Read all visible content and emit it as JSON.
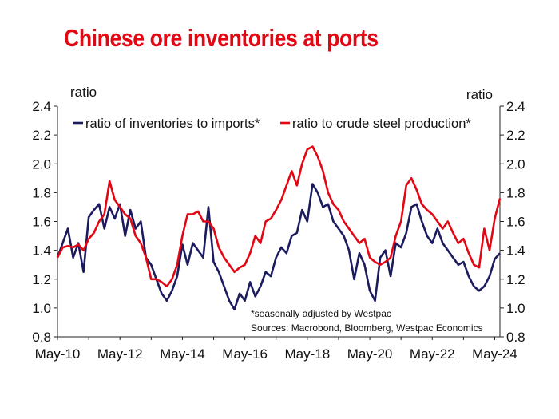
{
  "title": "Chinese ore inventories at ports",
  "chart_data": {
    "type": "line",
    "title": "Chinese ore inventories at ports",
    "ylabel_left": "ratio",
    "ylabel_right": "ratio",
    "ylim": [
      0.8,
      2.4
    ],
    "yticks": [
      "0.8",
      "1.0",
      "1.2",
      "1.4",
      "1.6",
      "1.8",
      "2.0",
      "2.2",
      "2.4"
    ],
    "xlim": [
      "2010-05",
      "2024-07"
    ],
    "xticks": [
      "May-10",
      "May-12",
      "May-14",
      "May-16",
      "May-18",
      "May-20",
      "May-22",
      "May-24"
    ],
    "legend_position": "top",
    "grid": false,
    "footnote": "*seasonally adjusted by Westpac",
    "source": "Sources: Macrobond, Bloomberg, Westpac Economics",
    "series": [
      {
        "name": "ratio of inventories to imports*",
        "color": "#1b1b5e",
        "x": [
          "2010-05",
          "2010-07",
          "2010-09",
          "2010-11",
          "2011-01",
          "2011-03",
          "2011-05",
          "2011-07",
          "2011-09",
          "2011-11",
          "2012-01",
          "2012-03",
          "2012-05",
          "2012-07",
          "2012-09",
          "2012-11",
          "2013-01",
          "2013-03",
          "2013-05",
          "2013-07",
          "2013-09",
          "2013-11",
          "2014-01",
          "2014-03",
          "2014-05",
          "2014-07",
          "2014-09",
          "2014-11",
          "2015-01",
          "2015-03",
          "2015-05",
          "2015-07",
          "2015-09",
          "2015-11",
          "2016-01",
          "2016-03",
          "2016-05",
          "2016-07",
          "2016-09",
          "2016-11",
          "2017-01",
          "2017-03",
          "2017-05",
          "2017-07",
          "2017-09",
          "2017-11",
          "2018-01",
          "2018-03",
          "2018-05",
          "2018-07",
          "2018-09",
          "2018-11",
          "2019-01",
          "2019-03",
          "2019-05",
          "2019-07",
          "2019-09",
          "2019-11",
          "2020-01",
          "2020-03",
          "2020-05",
          "2020-07",
          "2020-09",
          "2020-11",
          "2021-01",
          "2021-03",
          "2021-05",
          "2021-07",
          "2021-09",
          "2021-11",
          "2022-01",
          "2022-03",
          "2022-05",
          "2022-07",
          "2022-09",
          "2022-11",
          "2023-01",
          "2023-03",
          "2023-05",
          "2023-07",
          "2023-09",
          "2023-11",
          "2024-01",
          "2024-03",
          "2024-05",
          "2024-07"
        ],
        "values": [
          1.35,
          1.45,
          1.55,
          1.35,
          1.45,
          1.25,
          1.63,
          1.68,
          1.72,
          1.55,
          1.7,
          1.62,
          1.72,
          1.5,
          1.68,
          1.55,
          1.6,
          1.35,
          1.3,
          1.2,
          1.1,
          1.05,
          1.12,
          1.22,
          1.44,
          1.3,
          1.45,
          1.4,
          1.35,
          1.7,
          1.32,
          1.25,
          1.15,
          1.05,
          0.99,
          1.1,
          1.05,
          1.18,
          1.08,
          1.15,
          1.25,
          1.22,
          1.35,
          1.42,
          1.38,
          1.5,
          1.52,
          1.68,
          1.6,
          1.86,
          1.8,
          1.7,
          1.72,
          1.6,
          1.55,
          1.5,
          1.4,
          1.2,
          1.38,
          1.3,
          1.12,
          1.05,
          1.35,
          1.4,
          1.22,
          1.45,
          1.42,
          1.52,
          1.7,
          1.72,
          1.6,
          1.5,
          1.45,
          1.55,
          1.45,
          1.4,
          1.35,
          1.3,
          1.32,
          1.22,
          1.15,
          1.12,
          1.15,
          1.22,
          1.34,
          1.38
        ]
      },
      {
        "name": "ratio to crude steel production*",
        "color": "#e30613",
        "x": [
          "2010-05",
          "2010-07",
          "2010-09",
          "2010-11",
          "2011-01",
          "2011-03",
          "2011-05",
          "2011-07",
          "2011-09",
          "2011-11",
          "2012-01",
          "2012-03",
          "2012-05",
          "2012-07",
          "2012-09",
          "2012-11",
          "2013-01",
          "2013-03",
          "2013-05",
          "2013-07",
          "2013-09",
          "2013-11",
          "2014-01",
          "2014-03",
          "2014-05",
          "2014-07",
          "2014-09",
          "2014-11",
          "2015-01",
          "2015-03",
          "2015-05",
          "2015-07",
          "2015-09",
          "2015-11",
          "2016-01",
          "2016-03",
          "2016-05",
          "2016-07",
          "2016-09",
          "2016-11",
          "2017-01",
          "2017-03",
          "2017-05",
          "2017-07",
          "2017-09",
          "2017-11",
          "2018-01",
          "2018-03",
          "2018-05",
          "2018-07",
          "2018-09",
          "2018-11",
          "2019-01",
          "2019-03",
          "2019-05",
          "2019-07",
          "2019-09",
          "2019-11",
          "2020-01",
          "2020-03",
          "2020-05",
          "2020-07",
          "2020-09",
          "2020-11",
          "2021-01",
          "2021-03",
          "2021-05",
          "2021-07",
          "2021-09",
          "2021-11",
          "2022-01",
          "2022-03",
          "2022-05",
          "2022-07",
          "2022-09",
          "2022-11",
          "2023-01",
          "2023-03",
          "2023-05",
          "2023-07",
          "2023-09",
          "2023-11",
          "2024-01",
          "2024-03",
          "2024-05",
          "2024-07"
        ],
        "values": [
          1.35,
          1.42,
          1.43,
          1.42,
          1.44,
          1.4,
          1.48,
          1.52,
          1.6,
          1.65,
          1.88,
          1.75,
          1.7,
          1.65,
          1.62,
          1.5,
          1.45,
          1.35,
          1.2,
          1.2,
          1.18,
          1.15,
          1.2,
          1.3,
          1.5,
          1.65,
          1.65,
          1.67,
          1.6,
          1.6,
          1.55,
          1.42,
          1.35,
          1.3,
          1.25,
          1.28,
          1.3,
          1.38,
          1.5,
          1.45,
          1.6,
          1.62,
          1.68,
          1.75,
          1.85,
          1.95,
          1.85,
          2.0,
          2.1,
          2.12,
          2.05,
          1.95,
          1.8,
          1.72,
          1.68,
          1.6,
          1.55,
          1.5,
          1.45,
          1.48,
          1.35,
          1.32,
          1.3,
          1.32,
          1.35,
          1.5,
          1.6,
          1.85,
          1.9,
          1.82,
          1.72,
          1.68,
          1.65,
          1.6,
          1.55,
          1.6,
          1.52,
          1.45,
          1.48,
          1.38,
          1.3,
          1.28,
          1.55,
          1.4,
          1.62,
          1.76
        ]
      }
    ]
  }
}
